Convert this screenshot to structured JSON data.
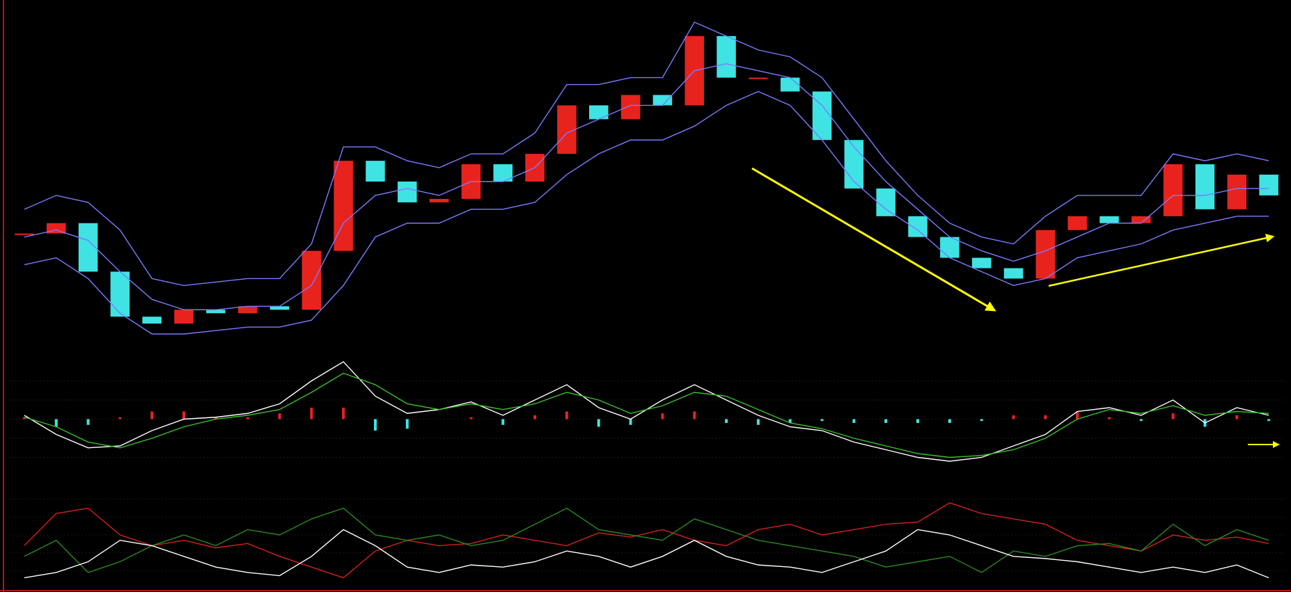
{
  "chart_data": [
    {
      "type": "candlestick",
      "ylim": [
        0,
        100
      ],
      "up_color": "#e8231e",
      "down_color": "#3fe3e3",
      "values": [
        35,
        38,
        24,
        11,
        9,
        13,
        12,
        14,
        13,
        30,
        56,
        50,
        44,
        45,
        55,
        50,
        58,
        72,
        68,
        75,
        72,
        92,
        80,
        80,
        76,
        62,
        48,
        40,
        34,
        28,
        25,
        22,
        36,
        40,
        38,
        40,
        55,
        42,
        52,
        46
      ],
      "series": [
        {
          "color": "#7b7bff",
          "values": [
            42,
            46,
            44,
            36,
            22,
            20,
            21,
            22,
            22,
            32,
            60,
            60,
            56,
            54,
            58,
            58,
            64,
            78,
            78,
            80,
            80,
            96,
            92,
            88,
            86,
            80,
            68,
            56,
            46,
            38,
            34,
            32,
            40,
            46,
            46,
            46,
            58,
            56,
            58,
            56
          ]
        },
        {
          "color": "#7b7bff",
          "values": [
            34,
            36,
            33,
            24,
            16,
            13,
            13,
            14,
            14,
            20,
            38,
            46,
            48,
            46,
            50,
            50,
            54,
            64,
            68,
            72,
            72,
            82,
            84,
            82,
            80,
            72,
            60,
            50,
            42,
            34,
            30,
            27,
            30,
            34,
            38,
            38,
            46,
            46,
            48,
            48
          ]
        },
        {
          "color": "#7b7bff",
          "values": [
            26,
            28,
            22,
            12,
            6,
            6,
            7,
            8,
            8,
            10,
            20,
            34,
            38,
            38,
            42,
            42,
            44,
            52,
            58,
            62,
            62,
            66,
            72,
            76,
            72,
            62,
            50,
            42,
            36,
            28,
            24,
            20,
            22,
            28,
            30,
            32,
            36,
            38,
            40,
            40
          ]
        }
      ]
    },
    {
      "type": "macd",
      "ylim": [
        -30,
        30
      ],
      "up_color": "#e8231e",
      "down_color": "#3fe3e3",
      "bar_values": [
        1,
        -4,
        -3,
        1,
        4,
        4,
        1,
        1,
        3,
        6,
        6,
        -6,
        -5,
        0,
        1,
        -3,
        2,
        4,
        -4,
        -3,
        3,
        4,
        -2,
        -3,
        -2,
        -1,
        -2,
        -2,
        -2,
        -2,
        -1,
        2,
        2,
        4,
        1,
        -1,
        3,
        -4,
        2,
        -1
      ],
      "series": [
        {
          "color": "#ffffff",
          "values": [
            2,
            -8,
            -15,
            -14,
            -6,
            0,
            1,
            3,
            8,
            20,
            30,
            12,
            3,
            5,
            9,
            2,
            10,
            18,
            6,
            0,
            10,
            18,
            10,
            2,
            -4,
            -6,
            -12,
            -16,
            -20,
            -22,
            -20,
            -14,
            -8,
            4,
            6,
            2,
            10,
            -2,
            6,
            2
          ]
        },
        {
          "color": "#3bbf2a",
          "values": [
            1,
            -4,
            -12,
            -15,
            -10,
            -4,
            0,
            2,
            5,
            14,
            24,
            18,
            8,
            5,
            8,
            5,
            8,
            14,
            10,
            3,
            7,
            14,
            12,
            5,
            -2,
            -5,
            -10,
            -14,
            -18,
            -20,
            -19,
            -16,
            -10,
            0,
            5,
            3,
            7,
            2,
            4,
            3
          ]
        }
      ]
    },
    {
      "type": "line",
      "ylim": [
        0,
        100
      ],
      "series": [
        {
          "color": "#d42020",
          "values": [
            40,
            70,
            75,
            50,
            40,
            45,
            38,
            42,
            30,
            20,
            10,
            35,
            45,
            40,
            42,
            50,
            45,
            40,
            52,
            48,
            55,
            45,
            40,
            55,
            60,
            50,
            55,
            60,
            62,
            80,
            70,
            65,
            60,
            45,
            40,
            35,
            50,
            45,
            48,
            42
          ]
        },
        {
          "color": "#2a8a1e",
          "values": [
            30,
            45,
            15,
            25,
            40,
            50,
            40,
            55,
            50,
            65,
            75,
            50,
            45,
            50,
            40,
            45,
            60,
            75,
            55,
            50,
            45,
            65,
            55,
            45,
            40,
            35,
            30,
            20,
            25,
            30,
            15,
            35,
            30,
            40,
            42,
            35,
            60,
            40,
            55,
            45
          ]
        },
        {
          "color": "#ffffff",
          "values": [
            10,
            15,
            25,
            45,
            40,
            30,
            20,
            15,
            12,
            30,
            55,
            40,
            20,
            15,
            22,
            20,
            25,
            35,
            30,
            20,
            30,
            45,
            30,
            22,
            20,
            15,
            25,
            35,
            55,
            50,
            40,
            30,
            28,
            25,
            20,
            15,
            20,
            15,
            22,
            10
          ]
        }
      ]
    }
  ]
}
